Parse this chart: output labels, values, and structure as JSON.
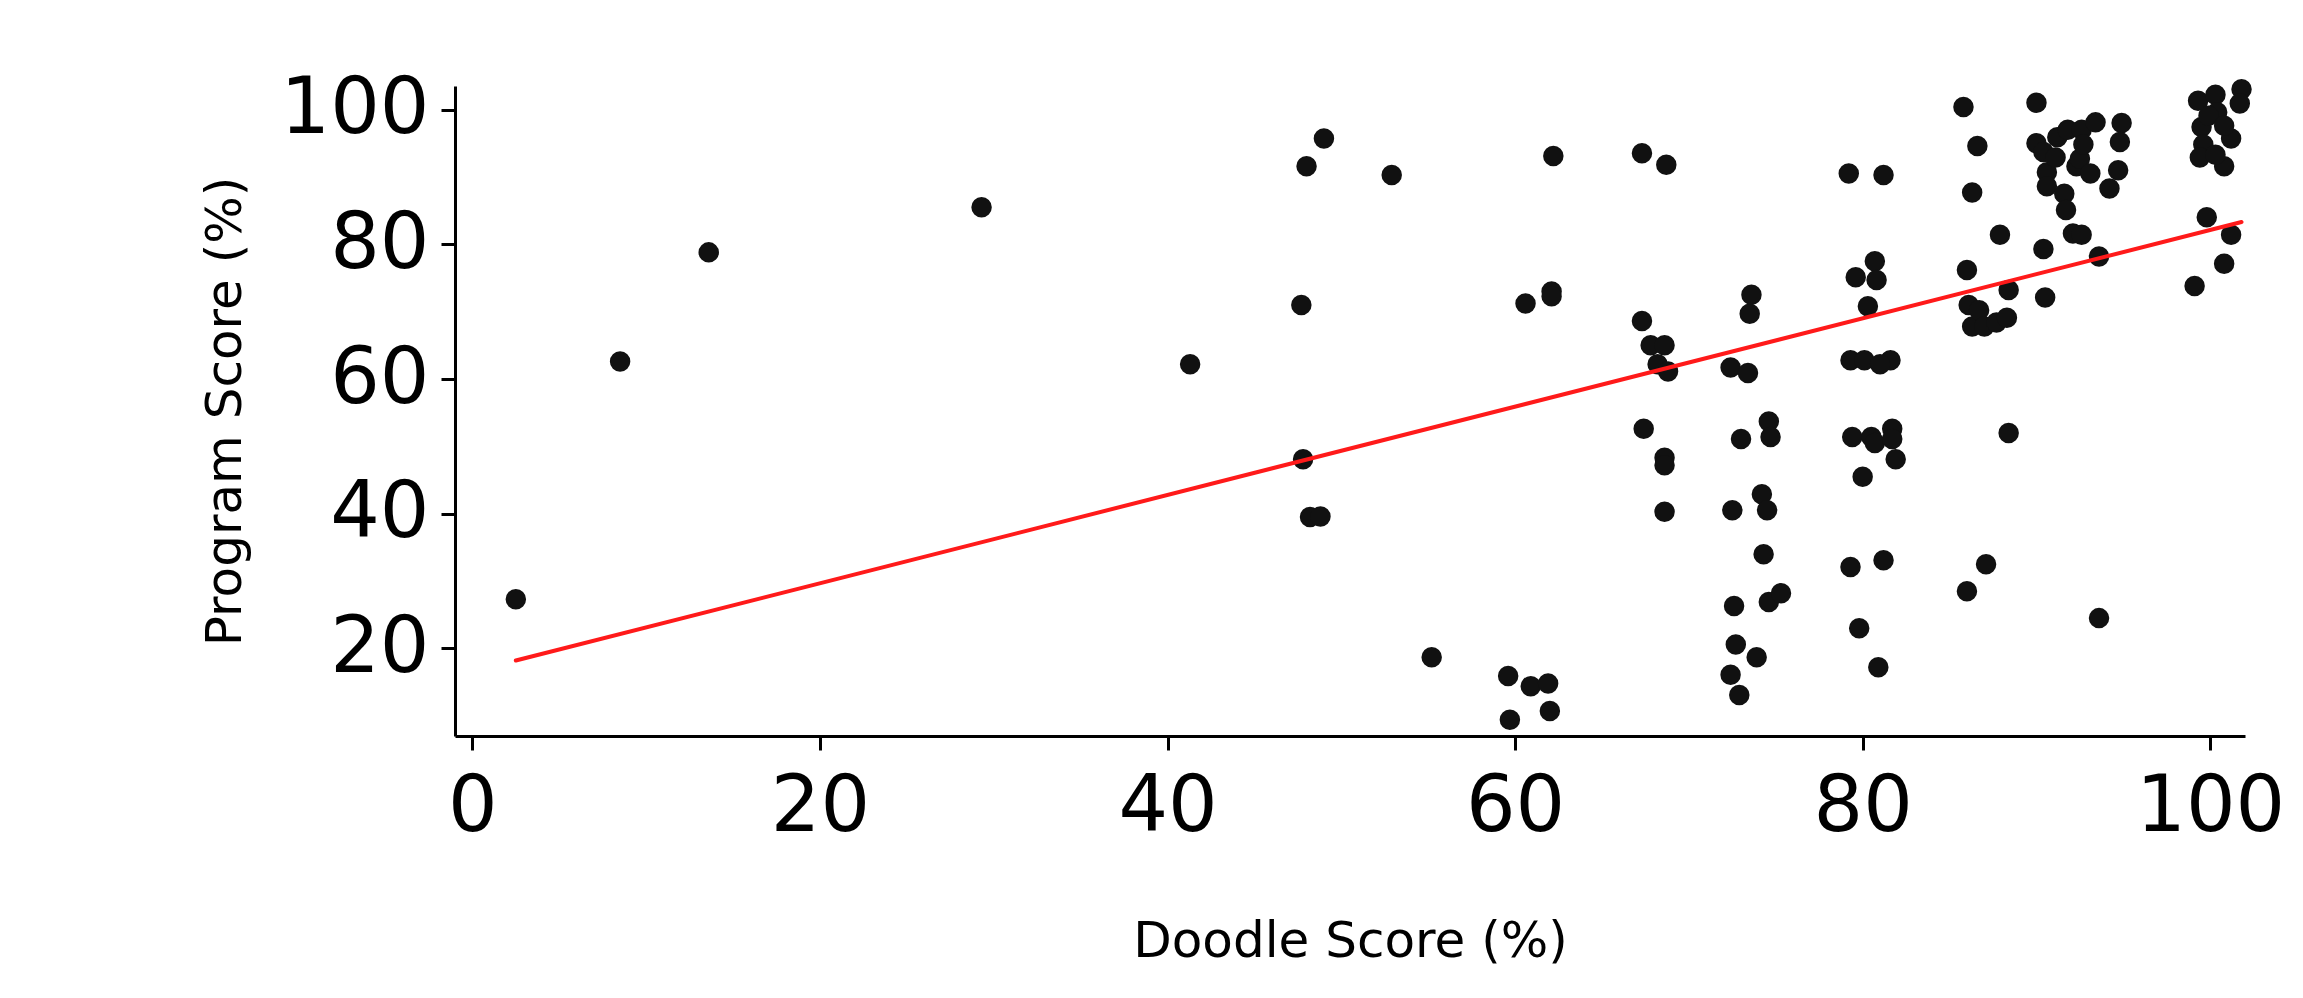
{
  "chart_data": {
    "type": "scatter",
    "xlabel": "Doodle Score (%)",
    "ylabel": "Program Score (%)",
    "xlim": [
      -1,
      102
    ],
    "ylim": [
      7,
      103.5
    ],
    "xticks": [
      0,
      20,
      40,
      60,
      80,
      100
    ],
    "yticks": [
      20,
      40,
      60,
      80,
      100
    ],
    "grid": false,
    "series": [
      {
        "type": "scatter",
        "color": "#111111",
        "marker": "circle",
        "x": [
          2.5,
          8.5,
          13.6,
          29.3,
          41.3,
          47.7,
          48,
          47.8,
          48.2,
          48.8,
          49,
          52.9,
          55.2,
          59.6,
          59.7,
          60.6,
          60.9,
          61.9,
          62,
          62.1,
          62.1,
          62.2,
          67.3,
          67.3,
          67.4,
          67.8,
          68.6,
          68.2,
          68.8,
          68.7,
          68.6,
          68.6,
          68.6,
          72.4,
          73.5,
          73.6,
          73,
          73.4,
          72.5,
          72.6,
          72.7,
          72.4,
          72.9,
          73.9,
          74.2,
          74.5,
          74.3,
          74.6,
          74.7,
          74.6,
          75.3,
          79.2,
          79.3,
          79.4,
          79.3,
          79.6,
          80.1,
          80,
          79.8,
          80.3,
          80.5,
          80.7,
          80.8,
          80.7,
          80.9,
          81.2,
          81.2,
          81.6,
          81,
          81.7,
          81.7,
          81.9,
          85.8,
          86,
          86.3,
          86.6,
          86.1,
          86.3,
          86.7,
          87,
          86,
          87.1,
          87.7,
          87.9,
          88.3,
          88.4,
          88.4,
          90,
          90,
          90.4,
          90.6,
          90.6,
          90.4,
          90.5,
          91.2,
          91.1,
          91.8,
          91.6,
          91.7,
          92.1,
          92.6,
          92.3,
          92.5,
          92.6,
          92.7,
          93.4,
          93.1,
          93.6,
          93.6,
          94.9,
          94.8,
          94.7,
          94.2,
          99.1,
          99.3,
          99.5,
          99.6,
          99.4,
          99.8,
          100.3,
          100.8,
          100.8,
          101.2,
          101.2,
          101.8,
          101.7,
          100.4,
          99.9,
          100.3,
          100.8
        ],
        "values": [
          27.3,
          62.6,
          78.8,
          85.5,
          62.2,
          71,
          91.6,
          48.1,
          39.5,
          39.6,
          95.7,
          90.3,
          18.7,
          15.9,
          9.4,
          71.2,
          14.4,
          14.8,
          10.7,
          73,
          72.3,
          93.1,
          93.5,
          68.6,
          52.6,
          65,
          65,
          62.2,
          61.1,
          91.8,
          48.3,
          47.2,
          40.3,
          61.7,
          69.7,
          72.5,
          51.1,
          60.9,
          40.5,
          26.3,
          20.6,
          16.1,
          13.1,
          18.7,
          42.9,
          40.5,
          34,
          53.7,
          51.4,
          26.9,
          28.2,
          90.5,
          62.8,
          51.4,
          32.1,
          75.1,
          62.8,
          45.5,
          23,
          70.8,
          51.4,
          77.5,
          74.7,
          50.5,
          17.2,
          90.3,
          33.1,
          62.8,
          62.2,
          52.6,
          51.1,
          48.1,
          100.4,
          76.2,
          87.7,
          94.6,
          71,
          67.8,
          70.2,
          67.8,
          28.5,
          32.5,
          68.4,
          81.4,
          69.1,
          52,
          73.2,
          101,
          95,
          93.7,
          90.7,
          88.6,
          79.3,
          72.1,
          95.9,
          92.9,
          97,
          87.5,
          85.1,
          81.6,
          81.4,
          91.6,
          92.7,
          97,
          94.8,
          98.1,
          90.5,
          78.2,
          24.5,
          98,
          95.2,
          91,
          88.3,
          73.8,
          101.3,
          97.4,
          94.8,
          92.9,
          84,
          102.2,
          77.1,
          91.6,
          81.4,
          95.7,
          103,
          100.9,
          99.6,
          99.1,
          93.3,
          97.6
        ]
      },
      {
        "type": "line",
        "color": "#ff1a1a",
        "x": [
          2.5,
          101.8
        ],
        "values": [
          18.2,
          83.3
        ]
      }
    ]
  }
}
